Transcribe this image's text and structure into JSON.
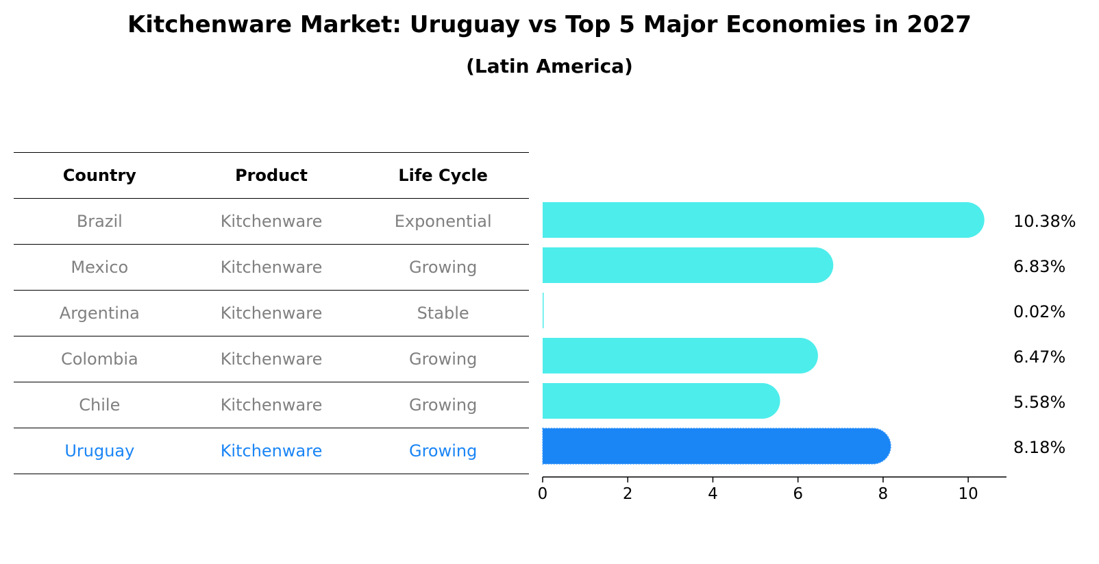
{
  "title": "Kitchenware Market: Uruguay vs Top 5 Major Economies in 2027",
  "subtitle": "(Latin America)",
  "colors": {
    "bar": "#4DEDEB",
    "highlight": "#1A85F5",
    "row_text": "#808080",
    "highlight_text": "#1A85F5"
  },
  "table": {
    "headers": [
      "Country",
      "Product",
      "Life Cycle"
    ],
    "rows": [
      [
        "Brazil",
        "Kitchenware",
        "Exponential"
      ],
      [
        "Mexico",
        "Kitchenware",
        "Growing"
      ],
      [
        "Argentina",
        "Kitchenware",
        "Stable"
      ],
      [
        "Colombia",
        "Kitchenware",
        "Growing"
      ],
      [
        "Chile",
        "Kitchenware",
        "Growing"
      ],
      [
        "Uruguay",
        "Kitchenware",
        "Growing"
      ]
    ],
    "highlight_row": 5
  },
  "chart_data": {
    "type": "bar",
    "orientation": "horizontal",
    "categories": [
      "Brazil",
      "Mexico",
      "Argentina",
      "Colombia",
      "Chile",
      "Uruguay"
    ],
    "values": [
      10.38,
      6.83,
      0.02,
      6.47,
      5.58,
      8.18
    ],
    "value_labels": [
      "10.38%",
      "6.83%",
      "0.02%",
      "6.47%",
      "5.58%",
      "8.18%"
    ],
    "highlight": "Uruguay",
    "xlim": [
      0,
      10.9
    ],
    "xticks": [
      0,
      2,
      4,
      6,
      8,
      10
    ],
    "xlabel": "",
    "ylabel": "",
    "grid": false
  }
}
